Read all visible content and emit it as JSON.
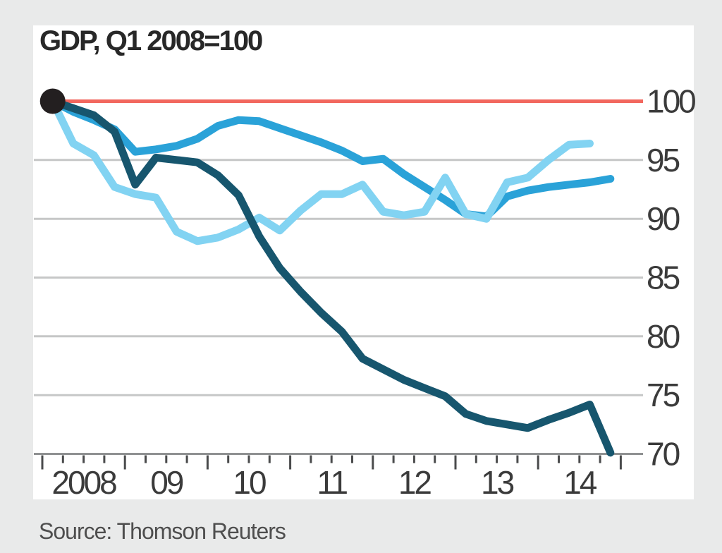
{
  "chart_data": {
    "type": "line",
    "title": "GDP, Q1 2008=100",
    "source": "Source: Thomson Reuters",
    "x_axis": {
      "start_year": 2008,
      "end_year": 2015,
      "tick_labels": [
        "2008",
        "09",
        "10",
        "11",
        "12",
        "13",
        "14"
      ],
      "quarters_per_year": 4,
      "tick_interval": "quarter"
    },
    "y_axis": {
      "ticks": [
        70,
        75,
        80,
        85,
        90,
        95,
        100
      ],
      "ylim": [
        70,
        100
      ],
      "grid": true
    },
    "baseline": {
      "value": 100,
      "label": "100",
      "color": "#f2675e"
    },
    "start_marker": {
      "quarter": "2008 Q1",
      "value": 100,
      "color": "#231f20"
    },
    "series": [
      {
        "name": "medium-blue-line",
        "color": "#2aa2d8",
        "width": 11,
        "start_quarter": "2008 Q1",
        "values": [
          100,
          99.1,
          98.4,
          97.6,
          95.7,
          95.9,
          96.2,
          96.8,
          97.9,
          98.4,
          98.3,
          97.7,
          97.1,
          96.5,
          95.8,
          94.9,
          95.1,
          93.8,
          92.7,
          91.6,
          90.4,
          90.2,
          91.9,
          92.4,
          92.7,
          92.9,
          93.1,
          93.4
        ]
      },
      {
        "name": "light-blue-line",
        "color": "#82d3f2",
        "width": 11,
        "start_quarter": "2008 Q1",
        "values": [
          100,
          96.4,
          95.4,
          92.7,
          92.1,
          91.8,
          88.9,
          88.1,
          88.4,
          89.1,
          90.1,
          89.0,
          90.7,
          92.1,
          92.1,
          92.9,
          90.6,
          90.3,
          90.6,
          93.5,
          90.4,
          90.0,
          93.1,
          93.5,
          95.0,
          96.3,
          96.4
        ]
      },
      {
        "name": "dark-teal-line",
        "color": "#17566e",
        "width": 11,
        "start_quarter": "2008 Q1",
        "values": [
          100,
          99.4,
          98.8,
          97.4,
          92.9,
          95.2,
          95.0,
          94.8,
          93.7,
          92.0,
          88.5,
          85.8,
          83.8,
          82.0,
          80.4,
          78.1,
          77.2,
          76.3,
          75.6,
          74.9,
          73.4,
          72.8,
          72.5,
          72.2,
          72.9,
          73.5,
          74.2,
          70.1
        ]
      }
    ],
    "layout": {
      "background": "#e9eaea",
      "panel": "#ffffff",
      "grid_color": "#c6c7c7",
      "axis_color": "#8f9192",
      "tick_color": "#4a4b4c",
      "label_color": "#3b3b3b",
      "legend": "none"
    }
  }
}
